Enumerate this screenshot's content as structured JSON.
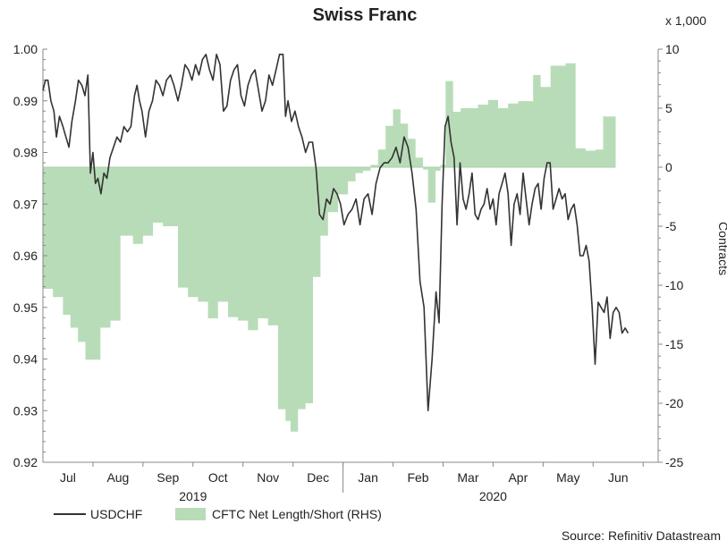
{
  "chart_data": {
    "type": "line",
    "title": "Swiss Franc",
    "y2_multiplier_label": "x 1,000",
    "y2label": "Contracts",
    "ylabel": "",
    "xlabel": "",
    "source": "Source: Refinitiv Datastream",
    "ylim": [
      0.92,
      1.0
    ],
    "y2lim": [
      -25,
      10
    ],
    "yticks": [
      "0.92",
      "0.93",
      "0.94",
      "0.95",
      "0.96",
      "0.97",
      "0.98",
      "0.99",
      "1.00"
    ],
    "y2ticks": [
      "-25",
      "-20",
      "-15",
      "-10",
      "-5",
      "0",
      "5",
      "10"
    ],
    "x_domain": [
      0,
      12.3
    ],
    "months": [
      {
        "label": "Jul",
        "pos": 0.5
      },
      {
        "label": "Aug",
        "pos": 1.5
      },
      {
        "label": "Sep",
        "pos": 2.5
      },
      {
        "label": "Oct",
        "pos": 3.5
      },
      {
        "label": "Nov",
        "pos": 4.5
      },
      {
        "label": "Dec",
        "pos": 5.5
      },
      {
        "label": "Jan",
        "pos": 6.5
      },
      {
        "label": "Feb",
        "pos": 7.5
      },
      {
        "label": "Mar",
        "pos": 8.5
      },
      {
        "label": "Apr",
        "pos": 9.5
      },
      {
        "label": "May",
        "pos": 10.5
      },
      {
        "label": "Jun",
        "pos": 11.5
      }
    ],
    "month_boundaries": [
      1,
      2,
      3,
      4,
      5,
      6,
      7,
      8,
      9,
      10,
      11,
      12
    ],
    "years": [
      {
        "label": "2019",
        "pos": 3.0
      },
      {
        "label": "2020",
        "pos": 9.0
      }
    ],
    "legend_position": "bottom-left",
    "series": [
      {
        "name": "USDCHF",
        "axis": "left",
        "color": "#333333",
        "points": [
          [
            0.0,
            0.992
          ],
          [
            0.05,
            0.994
          ],
          [
            0.1,
            0.994
          ],
          [
            0.16,
            0.99
          ],
          [
            0.22,
            0.988
          ],
          [
            0.27,
            0.983
          ],
          [
            0.33,
            0.987
          ],
          [
            0.4,
            0.985
          ],
          [
            0.46,
            0.983
          ],
          [
            0.52,
            0.981
          ],
          [
            0.58,
            0.986
          ],
          [
            0.65,
            0.99
          ],
          [
            0.71,
            0.994
          ],
          [
            0.78,
            0.993
          ],
          [
            0.84,
            0.991
          ],
          [
            0.9,
            0.995
          ],
          [
            0.95,
            0.976
          ],
          [
            1.0,
            0.98
          ],
          [
            1.05,
            0.974
          ],
          [
            1.1,
            0.975
          ],
          [
            1.16,
            0.972
          ],
          [
            1.22,
            0.976
          ],
          [
            1.28,
            0.975
          ],
          [
            1.34,
            0.979
          ],
          [
            1.41,
            0.981
          ],
          [
            1.48,
            0.983
          ],
          [
            1.55,
            0.982
          ],
          [
            1.62,
            0.985
          ],
          [
            1.69,
            0.984
          ],
          [
            1.76,
            0.985
          ],
          [
            1.83,
            0.991
          ],
          [
            1.88,
            0.993
          ],
          [
            1.93,
            0.99
          ],
          [
            1.98,
            0.988
          ],
          [
            2.05,
            0.983
          ],
          [
            2.12,
            0.988
          ],
          [
            2.19,
            0.99
          ],
          [
            2.26,
            0.994
          ],
          [
            2.33,
            0.993
          ],
          [
            2.4,
            0.991
          ],
          [
            2.47,
            0.994
          ],
          [
            2.55,
            0.995
          ],
          [
            2.62,
            0.993
          ],
          [
            2.7,
            0.99
          ],
          [
            2.77,
            0.993
          ],
          [
            2.84,
            0.997
          ],
          [
            2.91,
            0.996
          ],
          [
            2.98,
            0.994
          ],
          [
            3.05,
            0.997
          ],
          [
            3.12,
            0.995
          ],
          [
            3.19,
            0.998
          ],
          [
            3.26,
            0.999
          ],
          [
            3.33,
            0.996
          ],
          [
            3.4,
            0.994
          ],
          [
            3.47,
            0.999
          ],
          [
            3.54,
            0.997
          ],
          [
            3.61,
            0.988
          ],
          [
            3.68,
            0.989
          ],
          [
            3.75,
            0.994
          ],
          [
            3.82,
            0.996
          ],
          [
            3.89,
            0.997
          ],
          [
            3.96,
            0.991
          ],
          [
            4.03,
            0.989
          ],
          [
            4.1,
            0.993
          ],
          [
            4.17,
            0.995
          ],
          [
            4.24,
            0.996
          ],
          [
            4.31,
            0.992
          ],
          [
            4.38,
            0.988
          ],
          [
            4.45,
            0.99
          ],
          [
            4.52,
            0.995
          ],
          [
            4.59,
            0.993
          ],
          [
            4.66,
            0.996
          ],
          [
            4.73,
            0.999
          ],
          [
            4.8,
            0.999
          ],
          [
            4.85,
            0.987
          ],
          [
            4.9,
            0.99
          ],
          [
            4.97,
            0.986
          ],
          [
            5.04,
            0.988
          ],
          [
            5.11,
            0.985
          ],
          [
            5.18,
            0.983
          ],
          [
            5.25,
            0.98
          ],
          [
            5.32,
            0.982
          ],
          [
            5.39,
            0.982
          ],
          [
            5.46,
            0.977
          ],
          [
            5.53,
            0.968
          ],
          [
            5.6,
            0.967
          ],
          [
            5.67,
            0.971
          ],
          [
            5.74,
            0.97
          ],
          [
            5.81,
            0.973
          ],
          [
            5.88,
            0.972
          ],
          [
            5.95,
            0.97
          ],
          [
            6.02,
            0.966
          ],
          [
            6.1,
            0.968
          ],
          [
            6.18,
            0.969
          ],
          [
            6.26,
            0.971
          ],
          [
            6.34,
            0.966
          ],
          [
            6.42,
            0.971
          ],
          [
            6.5,
            0.972
          ],
          [
            6.58,
            0.968
          ],
          [
            6.66,
            0.974
          ],
          [
            6.74,
            0.977
          ],
          [
            6.82,
            0.978
          ],
          [
            6.9,
            0.978
          ],
          [
            6.98,
            0.979
          ],
          [
            7.06,
            0.981
          ],
          [
            7.14,
            0.978
          ],
          [
            7.22,
            0.983
          ],
          [
            7.3,
            0.981
          ],
          [
            7.38,
            0.976
          ],
          [
            7.46,
            0.969
          ],
          [
            7.54,
            0.955
          ],
          [
            7.62,
            0.95
          ],
          [
            7.7,
            0.93
          ],
          [
            7.78,
            0.94
          ],
          [
            7.86,
            0.953
          ],
          [
            7.92,
            0.947
          ],
          [
            7.98,
            0.97
          ],
          [
            8.04,
            0.985
          ],
          [
            8.1,
            0.987
          ],
          [
            8.16,
            0.982
          ],
          [
            8.22,
            0.979
          ],
          [
            8.28,
            0.966
          ],
          [
            8.34,
            0.978
          ],
          [
            8.4,
            0.971
          ],
          [
            8.46,
            0.969
          ],
          [
            8.52,
            0.972
          ],
          [
            8.58,
            0.976
          ],
          [
            8.64,
            0.968
          ],
          [
            8.7,
            0.967
          ],
          [
            8.76,
            0.969
          ],
          [
            8.82,
            0.97
          ],
          [
            8.88,
            0.973
          ],
          [
            8.94,
            0.969
          ],
          [
            9.0,
            0.971
          ],
          [
            9.06,
            0.966
          ],
          [
            9.12,
            0.972
          ],
          [
            9.18,
            0.974
          ],
          [
            9.24,
            0.976
          ],
          [
            9.3,
            0.972
          ],
          [
            9.36,
            0.962
          ],
          [
            9.42,
            0.97
          ],
          [
            9.48,
            0.972
          ],
          [
            9.54,
            0.968
          ],
          [
            9.6,
            0.976
          ],
          [
            9.66,
            0.971
          ],
          [
            9.72,
            0.966
          ],
          [
            9.78,
            0.97
          ],
          [
            9.84,
            0.973
          ],
          [
            9.9,
            0.974
          ],
          [
            9.96,
            0.969
          ],
          [
            10.02,
            0.975
          ],
          [
            10.08,
            0.978
          ],
          [
            10.14,
            0.978
          ],
          [
            10.2,
            0.969
          ],
          [
            10.26,
            0.971
          ],
          [
            10.32,
            0.973
          ],
          [
            10.38,
            0.971
          ],
          [
            10.44,
            0.972
          ],
          [
            10.5,
            0.967
          ],
          [
            10.56,
            0.969
          ],
          [
            10.62,
            0.97
          ],
          [
            10.68,
            0.966
          ],
          [
            10.74,
            0.96
          ],
          [
            10.8,
            0.96
          ],
          [
            10.86,
            0.962
          ],
          [
            10.92,
            0.959
          ],
          [
            10.98,
            0.95
          ],
          [
            11.04,
            0.939
          ],
          [
            11.1,
            0.951
          ],
          [
            11.16,
            0.95
          ],
          [
            11.22,
            0.949
          ],
          [
            11.28,
            0.952
          ],
          [
            11.34,
            0.944
          ],
          [
            11.4,
            0.949
          ],
          [
            11.46,
            0.95
          ],
          [
            11.52,
            0.949
          ],
          [
            11.58,
            0.945
          ],
          [
            11.64,
            0.946
          ],
          [
            11.7,
            0.945
          ]
        ]
      },
      {
        "name": "CFTC Net Length/Short (RHS)",
        "axis": "right",
        "color": "#b8dcb8",
        "steps": [
          [
            0.0,
            -10.3
          ],
          [
            0.2,
            -11.0
          ],
          [
            0.4,
            -12.5
          ],
          [
            0.55,
            -13.6
          ],
          [
            0.7,
            -14.8
          ],
          [
            0.85,
            -16.3
          ],
          [
            1.15,
            -13.6
          ],
          [
            1.35,
            -13.0
          ],
          [
            1.55,
            -5.8
          ],
          [
            1.8,
            -6.5
          ],
          [
            2.0,
            -5.8
          ],
          [
            2.2,
            -4.7
          ],
          [
            2.4,
            -5.0
          ],
          [
            2.7,
            -10.2
          ],
          [
            2.9,
            -11.0
          ],
          [
            3.1,
            -11.4
          ],
          [
            3.3,
            -12.8
          ],
          [
            3.5,
            -11.4
          ],
          [
            3.7,
            -12.7
          ],
          [
            3.9,
            -13.0
          ],
          [
            4.1,
            -13.8
          ],
          [
            4.3,
            -12.8
          ],
          [
            4.5,
            -13.4
          ],
          [
            4.7,
            -20.5
          ],
          [
            4.85,
            -21.5
          ],
          [
            4.95,
            -22.4
          ],
          [
            5.1,
            -20.5
          ],
          [
            5.25,
            -20.0
          ],
          [
            5.4,
            -9.3
          ],
          [
            5.55,
            -5.8
          ],
          [
            5.7,
            -3.8
          ],
          [
            5.9,
            -2.3
          ],
          [
            6.1,
            -1.2
          ],
          [
            6.25,
            -0.5
          ],
          [
            6.4,
            -0.3
          ],
          [
            6.55,
            0.2
          ],
          [
            6.7,
            1.5
          ],
          [
            6.85,
            3.5
          ],
          [
            7.0,
            4.9
          ],
          [
            7.15,
            3.7
          ],
          [
            7.3,
            2.4
          ],
          [
            7.45,
            0.8
          ],
          [
            7.6,
            -0.2
          ],
          [
            7.7,
            -3.0
          ],
          [
            7.85,
            -0.3
          ],
          [
            7.95,
            0.2
          ],
          [
            8.05,
            7.3
          ],
          [
            8.2,
            4.7
          ],
          [
            8.35,
            5.0
          ],
          [
            8.7,
            5.3
          ],
          [
            8.9,
            5.7
          ],
          [
            9.1,
            5.0
          ],
          [
            9.3,
            5.4
          ],
          [
            9.5,
            5.6
          ],
          [
            9.8,
            7.8
          ],
          [
            9.95,
            6.8
          ],
          [
            10.15,
            8.6
          ],
          [
            10.45,
            8.8
          ],
          [
            10.65,
            1.6
          ],
          [
            10.85,
            1.4
          ],
          [
            11.05,
            1.5
          ],
          [
            11.2,
            4.3
          ],
          [
            11.45,
            -0.3
          ]
        ],
        "x_end": 11.45
      }
    ]
  }
}
